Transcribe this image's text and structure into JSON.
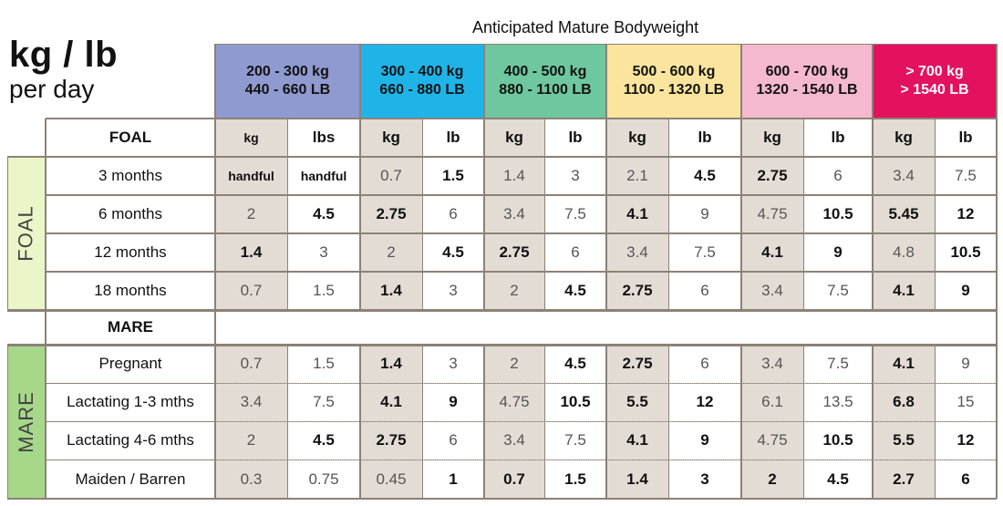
{
  "title": {
    "main": "kg / lb",
    "sub": "per day"
  },
  "super_header": "Anticipated Mature Bodyweight",
  "weight_bands": [
    {
      "line1": "200 - 300 kg",
      "line2": "440 - 660 LB",
      "color": "#8f9ad0"
    },
    {
      "line1": "300 - 400 kg",
      "line2": "660 - 880 LB",
      "color": "#1fb4e8"
    },
    {
      "line1": "400 - 500 kg",
      "line2": "880 - 1100 LB",
      "color": "#6ec79e"
    },
    {
      "line1": "500 - 600 kg",
      "line2": "1100 - 1320 LB",
      "color": "#fbe59e"
    },
    {
      "line1": "600 - 700 kg",
      "line2": "1320 - 1540 LB",
      "color": "#f4b9cf"
    },
    {
      "line1": "> 700 kg",
      "line2": "> 1540 LB",
      "color": "#e3115e"
    }
  ],
  "foal": {
    "header": "FOAL",
    "side_label": "FOAL",
    "units": [
      "kg",
      "lbs",
      "kg",
      "lb",
      "kg",
      "lb",
      "kg",
      "lb",
      "kg",
      "lb",
      "kg",
      "lb"
    ],
    "rows": [
      {
        "label": "3 months",
        "values": [
          "handful",
          "handful",
          "0.7",
          "1.5",
          "1.4",
          "3",
          "2.1",
          "4.5",
          "2.75",
          "6",
          "3.4",
          "7.5"
        ]
      },
      {
        "label": "6 months",
        "values": [
          "2",
          "4.5",
          "2.75",
          "6",
          "3.4",
          "7.5",
          "4.1",
          "9",
          "4.75",
          "10.5",
          "5.45",
          "12"
        ]
      },
      {
        "label": "12 months",
        "values": [
          "1.4",
          "3",
          "2",
          "4.5",
          "2.75",
          "6",
          "3.4",
          "7.5",
          "4.1",
          "9",
          "4.8",
          "10.5"
        ]
      },
      {
        "label": "18 months",
        "values": [
          "0.7",
          "1.5",
          "1.4",
          "3",
          "2",
          "4.5",
          "2.75",
          "6",
          "3.4",
          "7.5",
          "4.1",
          "9"
        ]
      }
    ]
  },
  "mare": {
    "header": "MARE",
    "side_label": "MARE",
    "rows": [
      {
        "label": "Pregnant",
        "values": [
          "0.7",
          "1.5",
          "1.4",
          "3",
          "2",
          "4.5",
          "2.75",
          "6",
          "3.4",
          "7.5",
          "4.1",
          "9"
        ]
      },
      {
        "label": "Lactating 1-3 mths",
        "values": [
          "3.4",
          "7.5",
          "4.1",
          "9",
          "4.75",
          "10.5",
          "5.5",
          "12",
          "6.1",
          "13.5",
          "6.8",
          "15"
        ]
      },
      {
        "label": "Lactating 4-6 mths",
        "values": [
          "2",
          "4.5",
          "2.75",
          "6",
          "3.4",
          "7.5",
          "4.1",
          "9",
          "4.75",
          "10.5",
          "5.5",
          "12"
        ]
      },
      {
        "label": "Maiden / Barren",
        "values": [
          "0.3",
          "0.75",
          "0.45",
          "1",
          "0.7",
          "1.5",
          "1.4",
          "3",
          "2",
          "4.5",
          "2.7",
          "6"
        ]
      }
    ]
  },
  "colors": {
    "kg_column_bg": "#e3dcd5",
    "foal_side_bg": "#eaf6c8",
    "mare_side_bg": "#a7d88a",
    "grid_line": "#8c8177"
  }
}
